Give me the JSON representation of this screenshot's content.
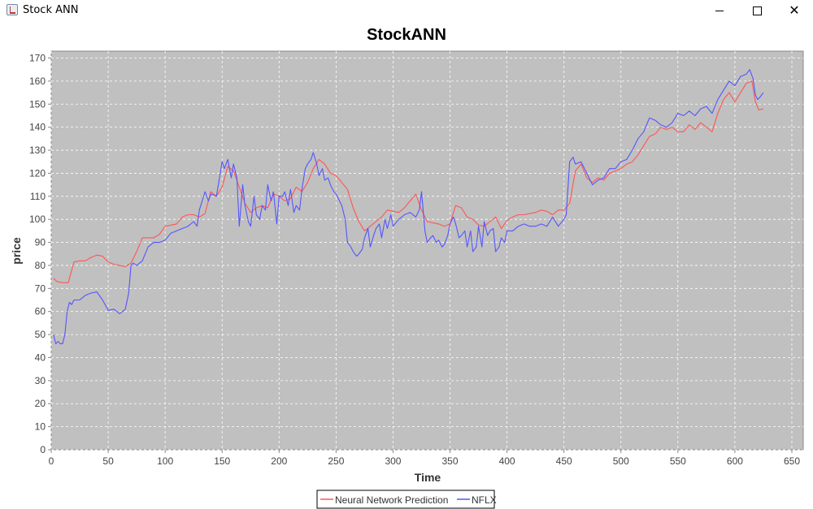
{
  "window": {
    "title": "Stock ANN",
    "icon": "java-cup-icon",
    "close_glyph": "✕"
  },
  "colors": {
    "plot_bg": "#c0c0c0",
    "grid": "#ffffff",
    "prediction": "#ff5555",
    "actual": "#5555ff"
  },
  "chart_data": {
    "type": "line",
    "title": "StockANN",
    "xlabel": "Time",
    "ylabel": "price",
    "xlim": [
      0,
      660
    ],
    "ylim": [
      0,
      173
    ],
    "xticks": [
      0,
      50,
      100,
      150,
      200,
      250,
      300,
      350,
      400,
      450,
      500,
      550,
      600,
      650
    ],
    "yticks": [
      0,
      10,
      20,
      30,
      40,
      50,
      60,
      70,
      80,
      90,
      100,
      110,
      120,
      130,
      140,
      150,
      160,
      170
    ],
    "grid": true,
    "legend_position": "bottom",
    "series": [
      {
        "name": "Neural Network Prediction",
        "color": "#ff5555",
        "x": [
          2,
          5,
          10,
          15,
          18,
          20,
          25,
          30,
          35,
          40,
          45,
          50,
          55,
          60,
          65,
          70,
          75,
          80,
          85,
          90,
          95,
          100,
          105,
          110,
          115,
          120,
          125,
          130,
          135,
          140,
          145,
          150,
          155,
          160,
          165,
          170,
          175,
          180,
          185,
          190,
          195,
          200,
          205,
          210,
          215,
          220,
          225,
          230,
          235,
          240,
          245,
          250,
          255,
          260,
          265,
          270,
          275,
          280,
          285,
          290,
          295,
          300,
          305,
          310,
          315,
          320,
          325,
          330,
          335,
          340,
          345,
          350,
          355,
          360,
          365,
          370,
          375,
          380,
          385,
          390,
          395,
          400,
          405,
          410,
          415,
          420,
          425,
          430,
          435,
          440,
          445,
          450,
          455,
          460,
          465,
          470,
          475,
          480,
          485,
          490,
          495,
          500,
          505,
          510,
          515,
          520,
          525,
          530,
          535,
          540,
          545,
          550,
          555,
          560,
          565,
          570,
          575,
          580,
          585,
          590,
          595,
          600,
          605,
          610,
          615,
          618,
          621,
          625
        ],
        "values": [
          74.5,
          73,
          72.5,
          72.5,
          78,
          81.5,
          82,
          82,
          83.5,
          84.5,
          84,
          81.5,
          80.5,
          80,
          79.5,
          81,
          86,
          92,
          92,
          92,
          93.5,
          97,
          97.5,
          98,
          101,
          102,
          102,
          101,
          102.5,
          112,
          110,
          114,
          123,
          121,
          114,
          107,
          103,
          105,
          106,
          105,
          111,
          110,
          108,
          109,
          114,
          112,
          116,
          122,
          126,
          124,
          120,
          119,
          116,
          113,
          105,
          99,
          95,
          97,
          99,
          101,
          104,
          103.5,
          103,
          105,
          108,
          111,
          104,
          99,
          98.5,
          98,
          97,
          98,
          106,
          105,
          101,
          100,
          97.5,
          97,
          99,
          101,
          96,
          99.5,
          101,
          102,
          102,
          102.5,
          103,
          104,
          103.5,
          102,
          104,
          104,
          107,
          121,
          124,
          118,
          116,
          118,
          117,
          120,
          121,
          122,
          124,
          125,
          128,
          132,
          136,
          137,
          140,
          139,
          140,
          138,
          138,
          141,
          139,
          142,
          140,
          138,
          146,
          152,
          155,
          151,
          155,
          159,
          160,
          151,
          147.5,
          148
        ]
      },
      {
        "name": "NFLX",
        "color": "#5555ff",
        "x": [
          2,
          4,
          6,
          8,
          10,
          12,
          14,
          16,
          18,
          20,
          25,
          30,
          35,
          40,
          45,
          50,
          55,
          60,
          65,
          68,
          70,
          72,
          75,
          80,
          85,
          90,
          95,
          100,
          105,
          110,
          115,
          120,
          125,
          128,
          130,
          135,
          138,
          140,
          145,
          150,
          152,
          155,
          158,
          160,
          163,
          165,
          168,
          170,
          173,
          175,
          178,
          180,
          183,
          185,
          188,
          190,
          193,
          195,
          198,
          200,
          203,
          205,
          208,
          210,
          213,
          215,
          218,
          220,
          223,
          225,
          228,
          230,
          233,
          235,
          238,
          240,
          243,
          245,
          248,
          250,
          253,
          255,
          258,
          260,
          263,
          265,
          268,
          270,
          273,
          275,
          278,
          280,
          283,
          285,
          288,
          290,
          293,
          295,
          298,
          300,
          305,
          310,
          315,
          320,
          323,
          325,
          328,
          330,
          333,
          335,
          338,
          340,
          343,
          345,
          348,
          350,
          353,
          355,
          358,
          360,
          363,
          365,
          368,
          370,
          373,
          375,
          378,
          380,
          383,
          385,
          388,
          390,
          393,
          395,
          398,
          400,
          405,
          410,
          415,
          420,
          425,
          430,
          435,
          440,
          445,
          450,
          452,
          455,
          458,
          460,
          465,
          470,
          475,
          480,
          485,
          490,
          495,
          500,
          505,
          510,
          515,
          520,
          525,
          530,
          535,
          540,
          545,
          550,
          555,
          560,
          565,
          570,
          575,
          580,
          585,
          590,
          595,
          600,
          605,
          610,
          613,
          616,
          618,
          620,
          622,
          625
        ],
        "values": [
          50,
          46,
          47,
          46,
          46,
          50,
          60,
          64,
          63,
          65,
          65,
          67,
          68,
          68.5,
          65,
          60.5,
          61,
          59,
          61,
          68,
          80,
          81,
          80,
          82,
          88,
          90,
          90,
          91,
          94,
          95,
          96,
          97,
          99,
          97,
          104,
          112,
          108,
          111,
          110,
          125,
          122,
          126,
          118,
          124,
          118,
          97,
          115,
          106,
          99,
          97,
          110,
          102,
          100,
          106,
          104,
          115,
          108,
          112,
          98,
          110,
          110,
          112,
          106,
          113,
          103,
          106,
          104,
          113,
          122,
          124,
          126,
          129,
          124,
          119,
          122,
          117,
          118,
          115,
          112,
          111,
          108,
          106,
          100,
          90,
          88,
          86,
          84,
          85,
          87,
          92,
          96,
          88,
          93,
          96,
          98,
          92,
          100,
          96,
          102,
          97,
          100,
          102,
          103,
          101,
          104,
          112,
          95,
          90,
          92,
          93,
          90,
          91,
          88,
          89,
          93,
          98,
          101,
          98,
          92,
          93,
          95,
          88,
          95,
          86,
          88,
          97,
          88,
          99,
          93,
          95,
          96,
          86,
          88,
          92,
          90,
          95,
          95,
          97,
          98,
          97,
          97,
          98,
          97,
          101,
          97,
          100,
          102,
          125,
          127,
          124,
          125,
          120,
          115,
          117,
          118,
          122,
          122,
          125,
          126,
          130,
          135,
          138,
          144,
          143,
          141,
          140,
          142,
          146,
          145,
          147,
          145,
          148,
          149,
          146,
          152,
          156,
          160,
          158,
          162,
          163,
          165,
          161,
          154,
          152,
          153,
          155
        ]
      }
    ]
  }
}
